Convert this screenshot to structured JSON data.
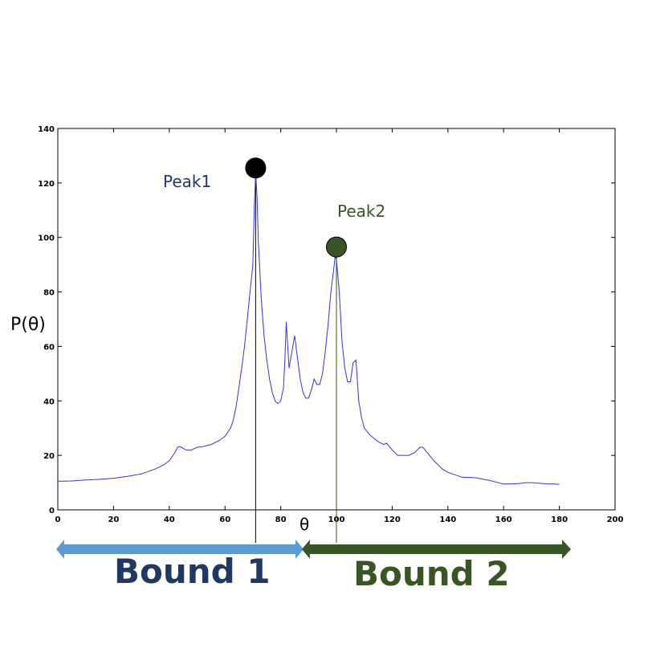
{
  "chart_data": {
    "type": "line",
    "title": "",
    "xlabel": "θ",
    "ylabel": "P(θ)",
    "xlim": [
      0,
      200
    ],
    "ylim": [
      0,
      140
    ],
    "xticks": [
      0,
      20,
      40,
      60,
      80,
      100,
      120,
      140,
      160,
      180,
      200
    ],
    "yticks": [
      0,
      20,
      40,
      60,
      80,
      100,
      120,
      140
    ],
    "grid": false,
    "colors": {
      "line": "#3333dd",
      "peak1": "#000000",
      "peak2": "#375623",
      "bound1_arrow": "#5b9bd5",
      "bound1_text": "#1f3864",
      "bound2": "#375623",
      "peak1_text": "#1f3864"
    },
    "series": [
      {
        "x": [
          0,
          5,
          10,
          15,
          20,
          25,
          30,
          35,
          38,
          40,
          42,
          43,
          44,
          46,
          48,
          50,
          52,
          55,
          58,
          60,
          62,
          63,
          64,
          65,
          66,
          67,
          68,
          69,
          70,
          70.5,
          71,
          71.5,
          72,
          73,
          74,
          75,
          76,
          77,
          78,
          79,
          80,
          81,
          81.5,
          82,
          83,
          84,
          85,
          86,
          87,
          88,
          89,
          90,
          91,
          92,
          93,
          94,
          95,
          96,
          97,
          98,
          99,
          99.5,
          100,
          101,
          102,
          103,
          104,
          105,
          106,
          107,
          108,
          109,
          110,
          112,
          115,
          117,
          118,
          120,
          122,
          124,
          126,
          128,
          130,
          131,
          133,
          135,
          138,
          140,
          145,
          150,
          155,
          160,
          165,
          168,
          170,
          175,
          180
        ],
        "y": [
          10.5,
          10.6,
          11,
          11.2,
          11.6,
          12.3,
          13.2,
          15,
          16.5,
          18,
          21,
          23,
          23.2,
          22,
          22,
          23,
          23.2,
          24,
          25.5,
          27,
          30,
          33,
          38,
          45,
          52,
          60,
          70,
          80,
          90,
          110,
          124,
          115,
          98,
          78,
          64,
          55,
          48,
          43,
          40,
          39,
          40,
          45,
          55,
          69,
          52,
          58,
          64,
          56,
          48,
          43,
          41,
          41,
          44,
          48,
          46,
          46,
          50,
          58,
          68,
          80,
          88,
          93,
          92,
          80,
          62,
          52,
          47,
          47,
          54,
          55,
          40,
          34,
          30,
          27.5,
          25,
          24,
          24.5,
          22,
          20,
          20,
          20,
          21,
          23,
          23,
          20.5,
          18,
          15,
          13.8,
          12,
          11.8,
          10.8,
          9.5,
          9.6,
          10,
          10,
          9.6,
          9.4
        ]
      }
    ],
    "markers": [
      {
        "label": "Peak1",
        "x": 71,
        "y": 125.5
      },
      {
        "label": "Peak2",
        "x": 100,
        "y": 96.5
      }
    ],
    "vlines": [
      71,
      100
    ],
    "bounds": [
      {
        "label": "Bound 1",
        "from": 0,
        "to": 90
      },
      {
        "label": "Bound 2",
        "from": 90,
        "to": 190
      }
    ]
  }
}
